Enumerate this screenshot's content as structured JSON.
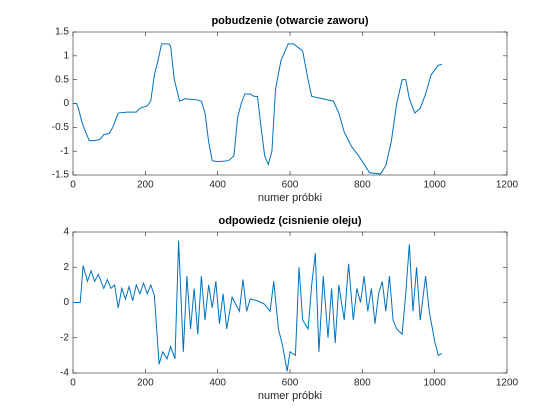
{
  "chart_data": [
    {
      "type": "line",
      "title": "pobudzenie (otwarcie zaworu)",
      "x_label": "numer próbki",
      "xlim": [
        0,
        1200
      ],
      "xticks": [
        0,
        200,
        400,
        600,
        800,
        1000,
        1200
      ],
      "ylim": [
        -1.5,
        1.5
      ],
      "yticks": [
        -1.5,
        -1,
        -0.5,
        0,
        0.5,
        1,
        1.5
      ],
      "grid": false,
      "x": [
        0,
        10,
        15,
        25,
        35,
        45,
        60,
        75,
        85,
        100,
        110,
        125,
        150,
        175,
        185,
        205,
        215,
        225,
        235,
        245,
        265,
        270,
        280,
        295,
        310,
        340,
        355,
        365,
        375,
        385,
        400,
        430,
        445,
        455,
        465,
        475,
        490,
        500,
        510,
        520,
        530,
        540,
        550,
        560,
        575,
        595,
        610,
        635,
        650,
        660,
        690,
        720,
        735,
        750,
        770,
        790,
        820,
        850,
        865,
        880,
        895,
        910,
        920,
        930,
        945,
        960,
        975,
        990,
        1010,
        1020
      ],
      "series": [
        {
          "color": "#0072bd",
          "values": [
            0,
            0,
            -0.1,
            -0.4,
            -0.6,
            -0.78,
            -0.78,
            -0.75,
            -0.65,
            -0.63,
            -0.5,
            -0.2,
            -0.18,
            -0.18,
            -0.1,
            -0.05,
            0.05,
            0.6,
            0.9,
            1.25,
            1.25,
            1.2,
            0.5,
            0.05,
            0.1,
            0.08,
            0.05,
            -0.2,
            -0.8,
            -1.2,
            -1.22,
            -1.2,
            -1.1,
            -0.3,
            0,
            0.2,
            0.2,
            0.15,
            0.15,
            -0.5,
            -1.1,
            -1.28,
            -1,
            0.3,
            0.9,
            1.25,
            1.25,
            1.1,
            0.5,
            0.15,
            0.1,
            0.05,
            -0.2,
            -0.6,
            -0.9,
            -1.1,
            -1.45,
            -1.48,
            -1.3,
            -0.8,
            0,
            0.5,
            0.5,
            0.1,
            -0.2,
            -0.1,
            0.2,
            0.6,
            0.8,
            0.82
          ]
        }
      ]
    },
    {
      "type": "line",
      "title": "odpowiedz (cisnienie oleju)",
      "x_label": "numer próbki",
      "xlim": [
        0,
        1200
      ],
      "xticks": [
        0,
        200,
        400,
        600,
        800,
        1000,
        1200
      ],
      "ylim": [
        -4,
        4
      ],
      "yticks": [
        -4,
        -2,
        0,
        2,
        4
      ],
      "grid": false,
      "x": [
        0,
        20,
        28,
        40,
        50,
        60,
        70,
        85,
        95,
        105,
        115,
        125,
        135,
        145,
        155,
        165,
        175,
        185,
        195,
        205,
        215,
        225,
        238,
        248,
        260,
        270,
        282,
        292,
        305,
        315,
        325,
        335,
        345,
        355,
        365,
        375,
        385,
        395,
        405,
        415,
        425,
        440,
        460,
        470,
        480,
        490,
        510,
        530,
        545,
        555,
        568,
        580,
        592,
        600,
        615,
        625,
        635,
        650,
        660,
        670,
        680,
        692,
        705,
        715,
        725,
        735,
        750,
        762,
        775,
        785,
        795,
        805,
        815,
        825,
        835,
        845,
        855,
        865,
        875,
        885,
        895,
        910,
        920,
        930,
        940,
        950,
        960,
        975,
        985,
        1000,
        1010,
        1020
      ],
      "series": [
        {
          "color": "#0072bd",
          "values": [
            0,
            0,
            2.1,
            1.2,
            1.8,
            1.2,
            1.6,
            0.8,
            1.3,
            0.8,
            1.0,
            -0.3,
            0.8,
            0.2,
            0.9,
            0.1,
            1.0,
            0.5,
            1.1,
            0.5,
            1.0,
            0.4,
            -3.5,
            -2.8,
            -3.2,
            -2.5,
            -3.2,
            3.5,
            -2.8,
            1.5,
            -1.5,
            0.8,
            -1.8,
            1.5,
            -1.0,
            1.0,
            -0.3,
            1.2,
            -1.2,
            0.5,
            -1.5,
            0.3,
            -0.5,
            1.3,
            -0.5,
            0.2,
            0.1,
            -0.1,
            -0.5,
            1.2,
            -1.5,
            -2.5,
            -3.9,
            -2.8,
            -3.0,
            2.0,
            -1.0,
            -1.5,
            1.0,
            2.8,
            -2.8,
            1.5,
            -2.0,
            0.8,
            -2.3,
            1.0,
            -1.0,
            2.2,
            -1.0,
            0.8,
            0,
            1.5,
            -0.5,
            0.8,
            -1.2,
            0.5,
            1.2,
            -0.5,
            1.5,
            -1.0,
            -1.5,
            -1.8,
            0.5,
            3.3,
            -0.5,
            2.0,
            -1.0,
            1.5,
            -0.5,
            -2.2,
            -3.0,
            -2.9
          ]
        }
      ]
    }
  ]
}
